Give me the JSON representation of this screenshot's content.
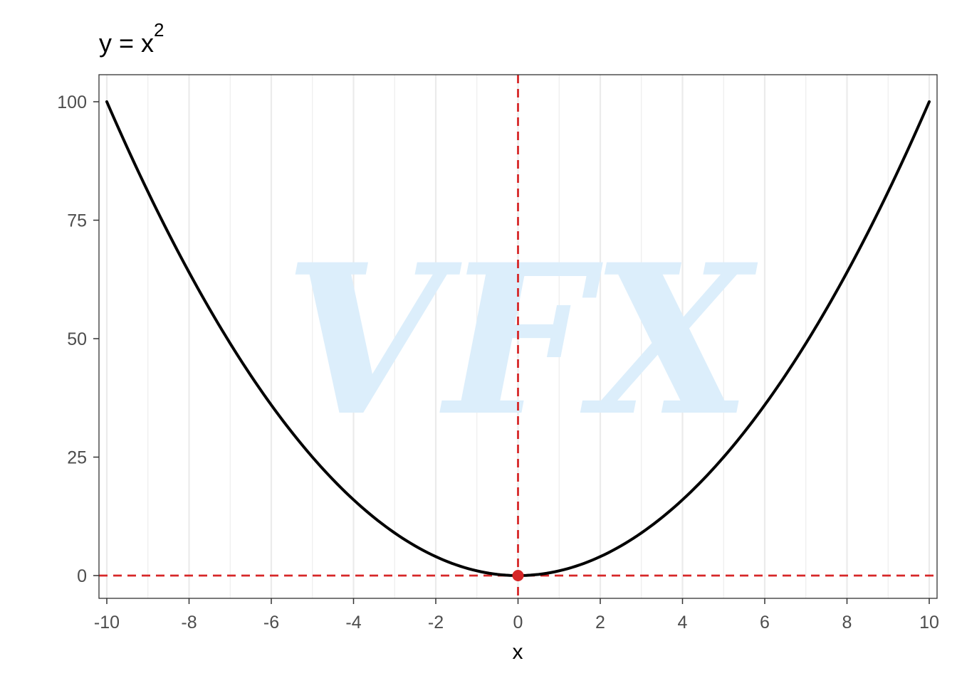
{
  "chart_data": {
    "type": "line",
    "title": {
      "base": "y = x",
      "superscript": "2"
    },
    "xlabel": "x",
    "ylabel": "",
    "xlim": [
      -10,
      10
    ],
    "ylim": [
      0,
      100
    ],
    "x_ticks": [
      -10,
      -8,
      -6,
      -4,
      -2,
      0,
      2,
      4,
      6,
      8,
      10
    ],
    "y_ticks": [
      0,
      25,
      50,
      75,
      100
    ],
    "grid": "vertical-major-and-minor",
    "series": [
      {
        "function": "x^2",
        "x": [
          -10,
          -9,
          -8,
          -7,
          -6,
          -5,
          -4,
          -3,
          -2,
          -1,
          0,
          1,
          2,
          3,
          4,
          5,
          6,
          7,
          8,
          9,
          10
        ],
        "y": [
          100,
          81,
          64,
          49,
          36,
          25,
          16,
          9,
          4,
          1,
          0,
          1,
          4,
          9,
          16,
          25,
          36,
          49,
          64,
          81,
          100
        ],
        "color": "#000000"
      }
    ],
    "reference_lines": [
      {
        "orientation": "vertical",
        "x": 0,
        "style": "dashed",
        "color": "#d62728"
      },
      {
        "orientation": "horizontal",
        "y": 0,
        "style": "dashed",
        "color": "#d62728"
      }
    ],
    "highlight_point": {
      "x": 0,
      "y": 0,
      "color": "#d62728"
    }
  },
  "watermark": {
    "text": "VFX",
    "color": "#dceefb"
  },
  "colors": {
    "panel_border": "#333333",
    "grid": "#ebebeb",
    "tick_mark": "#333333"
  }
}
